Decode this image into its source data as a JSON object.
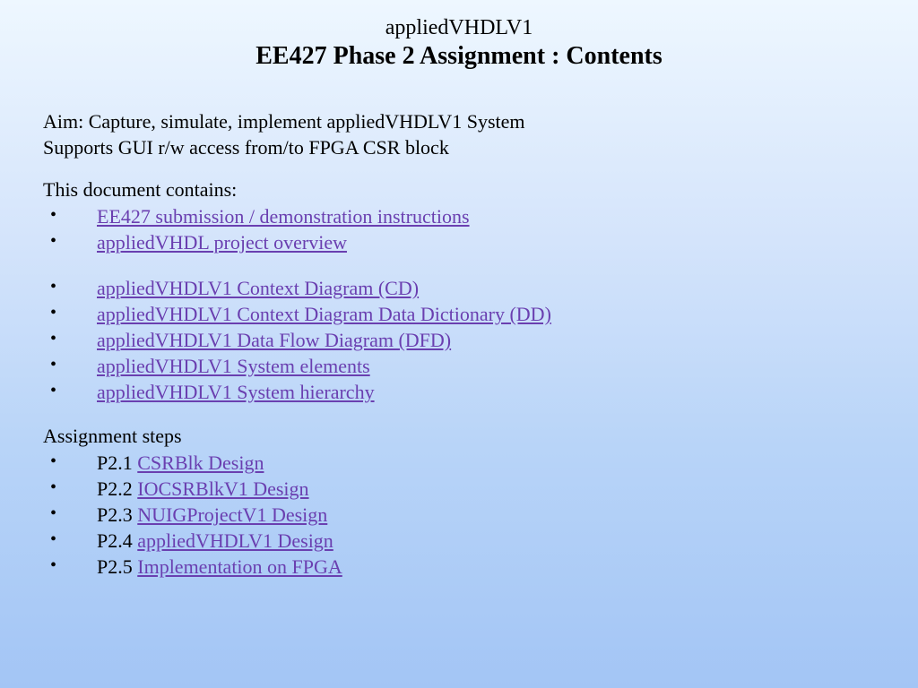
{
  "header": {
    "subtitle": "appliedVHDLV1",
    "title": "EE427 Phase 2 Assignment : Contents"
  },
  "aim": {
    "line1": "Aim: Capture, simulate, implement appliedVHDLV1 System",
    "line2": "Supports GUI r/w access from/to FPGA CSR block"
  },
  "contains_label": "This document contains:",
  "links_group1": [
    "EE427 submission / demonstration instructions",
    "appliedVHDL project overview"
  ],
  "links_group2": [
    "appliedVHDLV1 Context Diagram (CD)",
    "appliedVHDLV1 Context Diagram Data Dictionary (DD)",
    "appliedVHDLV1 Data Flow Diagram (DFD)",
    "appliedVHDLV1 System elements",
    "appliedVHDLV1 System hierarchy"
  ],
  "steps_label": "Assignment steps",
  "steps": [
    {
      "prefix": "P2.1  ",
      "link": "CSRBlk Design"
    },
    {
      "prefix": "P2.2  ",
      "link": "IOCSRBlkV1 Design "
    },
    {
      "prefix": "P2.3  ",
      "link": "NUIGProjectV1 Design"
    },
    {
      "prefix": "P2.4  ",
      "link": "appliedVHDLV1 Design"
    },
    {
      "prefix": "P2.5  ",
      "link": " Implementation on FPGA"
    }
  ],
  "colors": {
    "link": "#6a3fb0",
    "text": "#000000",
    "bg_top": "#eef7ff",
    "bg_bottom": "#a3c5f5"
  }
}
